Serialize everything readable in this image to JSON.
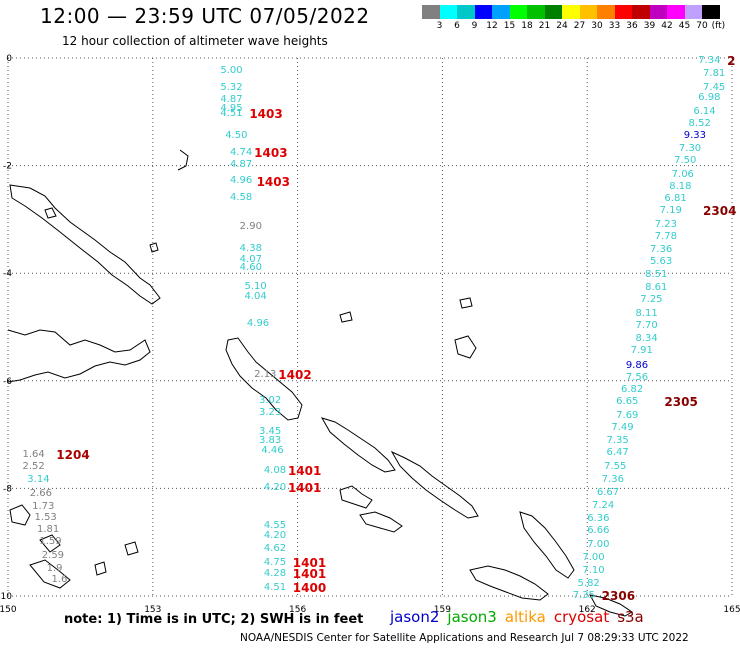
{
  "header": {
    "title": "12:00 — 23:59 UTC 07/05/2022",
    "subtitle": "12 hour collection of altimeter wave heights"
  },
  "legend": {
    "unit": "(ft)",
    "ticks": [
      "3",
      "6",
      "9",
      "12",
      "15",
      "18",
      "21",
      "24",
      "27",
      "30",
      "33",
      "36",
      "39",
      "42",
      "45",
      "70"
    ],
    "colors": [
      "#808080",
      "#00ffff",
      "#00c8c8",
      "#0000ff",
      "#00a0ff",
      "#00ff00",
      "#00c000",
      "#008000",
      "#ffff00",
      "#ffc000",
      "#ff8000",
      "#ff0000",
      "#c00000",
      "#c000c0",
      "#ff00ff",
      "#c0a0ff",
      "#000000"
    ]
  },
  "map": {
    "lon_ticks": [
      "150",
      "153",
      "156",
      "159",
      "162",
      "165"
    ],
    "lat_ticks": [
      "0",
      "-2",
      "-4",
      "-6",
      "-8",
      "-10"
    ],
    "lon_range": [
      150,
      165
    ],
    "lat_range": [
      -10,
      0
    ]
  },
  "observations": [
    {
      "value": "5.00",
      "color": "#33cccc",
      "lon": 154.4,
      "lat": -0.25
    },
    {
      "value": "5.32",
      "color": "#33cccc",
      "lon": 154.4,
      "lat": -0.55
    },
    {
      "value": "4.87",
      "color": "#33cccc",
      "lon": 154.4,
      "lat": -0.78
    },
    {
      "value": "4.95",
      "color": "#33cccc",
      "lon": 154.4,
      "lat": -0.95
    },
    {
      "value": "4.51",
      "color": "#33cccc",
      "lon": 154.4,
      "lat": -1.05
    },
    {
      "value": "4.50",
      "color": "#33cccc",
      "lon": 154.5,
      "lat": -1.45
    },
    {
      "value": "4.74",
      "color": "#33cccc",
      "lon": 154.6,
      "lat": -1.77
    },
    {
      "value": "4.87",
      "color": "#33cccc",
      "lon": 154.6,
      "lat": -1.98
    },
    {
      "value": "4.96",
      "color": "#33cccc",
      "lon": 154.6,
      "lat": -2.28
    },
    {
      "value": "4.58",
      "color": "#33cccc",
      "lon": 154.6,
      "lat": -2.6
    },
    {
      "value": "2.90",
      "color": "#808080",
      "lon": 154.8,
      "lat": -3.15
    },
    {
      "value": "4.38",
      "color": "#33cccc",
      "lon": 154.8,
      "lat": -3.55
    },
    {
      "value": "4.07",
      "color": "#33cccc",
      "lon": 154.8,
      "lat": -3.75
    },
    {
      "value": "4.60",
      "color": "#33cccc",
      "lon": 154.8,
      "lat": -3.9
    },
    {
      "value": "5.10",
      "color": "#33cccc",
      "lon": 154.9,
      "lat": -4.25
    },
    {
      "value": "4.04",
      "color": "#33cccc",
      "lon": 154.9,
      "lat": -4.45
    },
    {
      "value": "4.96",
      "color": "#33cccc",
      "lon": 154.95,
      "lat": -4.95
    },
    {
      "value": "2.13",
      "color": "#808080",
      "lon": 155.1,
      "lat": -5.9
    },
    {
      "value": "3.02",
      "color": "#33cccc",
      "lon": 155.2,
      "lat": -6.38
    },
    {
      "value": "3.23",
      "color": "#33cccc",
      "lon": 155.2,
      "lat": -6.6
    },
    {
      "value": "3.45",
      "color": "#33cccc",
      "lon": 155.2,
      "lat": -6.95
    },
    {
      "value": "3.83",
      "color": "#33cccc",
      "lon": 155.2,
      "lat": -7.12
    },
    {
      "value": "4.46",
      "color": "#33cccc",
      "lon": 155.25,
      "lat": -7.3
    },
    {
      "value": "4.08",
      "color": "#33cccc",
      "lon": 155.3,
      "lat": -7.68
    },
    {
      "value": "4.20",
      "color": "#33cccc",
      "lon": 155.3,
      "lat": -8.0
    },
    {
      "value": "4.55",
      "color": "#33cccc",
      "lon": 155.3,
      "lat": -8.7
    },
    {
      "value": "4.20",
      "color": "#33cccc",
      "lon": 155.3,
      "lat": -8.88
    },
    {
      "value": "4.62",
      "color": "#33cccc",
      "lon": 155.3,
      "lat": -9.12
    },
    {
      "value": "4.75",
      "color": "#33cccc",
      "lon": 155.3,
      "lat": -9.38
    },
    {
      "value": "4.28",
      "color": "#33cccc",
      "lon": 155.3,
      "lat": -9.6
    },
    {
      "value": "4.51",
      "color": "#33cccc",
      "lon": 155.3,
      "lat": -9.85
    },
    {
      "value": "1.64",
      "color": "#808080",
      "lon": 150.3,
      "lat": -7.38
    },
    {
      "value": "2.52",
      "color": "#808080",
      "lon": 150.3,
      "lat": -7.6
    },
    {
      "value": "3.14",
      "color": "#33cccc",
      "lon": 150.4,
      "lat": -7.85
    },
    {
      "value": "2.66",
      "color": "#808080",
      "lon": 150.45,
      "lat": -8.1
    },
    {
      "value": "1.73",
      "color": "#808080",
      "lon": 150.5,
      "lat": -8.35
    },
    {
      "value": "1.53",
      "color": "#808080",
      "lon": 150.55,
      "lat": -8.55
    },
    {
      "value": "1.81",
      "color": "#808080",
      "lon": 150.6,
      "lat": -8.78
    },
    {
      "value": "1.59",
      "color": "#808080",
      "lon": 150.65,
      "lat": -9.0
    },
    {
      "value": "2.59",
      "color": "#808080",
      "lon": 150.7,
      "lat": -9.25
    },
    {
      "value": "1.9",
      "color": "#808080",
      "lon": 150.8,
      "lat": -9.5
    },
    {
      "value": "1.6",
      "color": "#808080",
      "lon": 150.9,
      "lat": -9.7
    },
    {
      "value": "7.34",
      "color": "#33cccc",
      "lon": 164.3,
      "lat": -0.05
    },
    {
      "value": "7.81",
      "color": "#33cccc",
      "lon": 164.4,
      "lat": -0.3
    },
    {
      "value": "7.45",
      "color": "#33cccc",
      "lon": 164.4,
      "lat": -0.55
    },
    {
      "value": "6.98",
      "color": "#33cccc",
      "lon": 164.3,
      "lat": -0.75
    },
    {
      "value": "6.14",
      "color": "#33cccc",
      "lon": 164.2,
      "lat": -1.0
    },
    {
      "value": "8.52",
      "color": "#33cccc",
      "lon": 164.1,
      "lat": -1.22
    },
    {
      "value": "9.33",
      "color": "#0000cc",
      "lon": 164.0,
      "lat": -1.45
    },
    {
      "value": "7.30",
      "color": "#33cccc",
      "lon": 163.9,
      "lat": -1.7
    },
    {
      "value": "7.50",
      "color": "#33cccc",
      "lon": 163.8,
      "lat": -1.92
    },
    {
      "value": "7.06",
      "color": "#33cccc",
      "lon": 163.75,
      "lat": -2.17
    },
    {
      "value": "8.18",
      "color": "#33cccc",
      "lon": 163.7,
      "lat": -2.4
    },
    {
      "value": "6.81",
      "color": "#33cccc",
      "lon": 163.6,
      "lat": -2.62
    },
    {
      "value": "7.19",
      "color": "#33cccc",
      "lon": 163.5,
      "lat": -2.85
    },
    {
      "value": "7.23",
      "color": "#33cccc",
      "lon": 163.4,
      "lat": -3.1
    },
    {
      "value": "7.78",
      "color": "#33cccc",
      "lon": 163.4,
      "lat": -3.33
    },
    {
      "value": "7.36",
      "color": "#33cccc",
      "lon": 163.3,
      "lat": -3.57
    },
    {
      "value": "5.63",
      "color": "#33cccc",
      "lon": 163.3,
      "lat": -3.8
    },
    {
      "value": "8.51",
      "color": "#33cccc",
      "lon": 163.2,
      "lat": -4.03
    },
    {
      "value": "8.61",
      "color": "#33cccc",
      "lon": 163.2,
      "lat": -4.27
    },
    {
      "value": "7.25",
      "color": "#33cccc",
      "lon": 163.1,
      "lat": -4.5
    },
    {
      "value": "8.11",
      "color": "#33cccc",
      "lon": 163.0,
      "lat": -4.75
    },
    {
      "value": "7.70",
      "color": "#33cccc",
      "lon": 163.0,
      "lat": -4.98
    },
    {
      "value": "8.34",
      "color": "#33cccc",
      "lon": 163.0,
      "lat": -5.23
    },
    {
      "value": "7.91",
      "color": "#33cccc",
      "lon": 162.9,
      "lat": -5.45
    },
    {
      "value": "9.86",
      "color": "#0000cc",
      "lon": 162.8,
      "lat": -5.72
    },
    {
      "value": "7.56",
      "color": "#33cccc",
      "lon": 162.8,
      "lat": -5.95
    },
    {
      "value": "6.82",
      "color": "#33cccc",
      "lon": 162.7,
      "lat": -6.17
    },
    {
      "value": "6.65",
      "color": "#33cccc",
      "lon": 162.6,
      "lat": -6.4
    },
    {
      "value": "7.69",
      "color": "#33cccc",
      "lon": 162.6,
      "lat": -6.65
    },
    {
      "value": "7.49",
      "color": "#33cccc",
      "lon": 162.5,
      "lat": -6.88
    },
    {
      "value": "7.35",
      "color": "#33cccc",
      "lon": 162.4,
      "lat": -7.12
    },
    {
      "value": "6.47",
      "color": "#33cccc",
      "lon": 162.4,
      "lat": -7.35
    },
    {
      "value": "7.55",
      "color": "#33cccc",
      "lon": 162.35,
      "lat": -7.6
    },
    {
      "value": "7.36",
      "color": "#33cccc",
      "lon": 162.3,
      "lat": -7.85
    },
    {
      "value": "6.67",
      "color": "#33cccc",
      "lon": 162.2,
      "lat": -8.08
    },
    {
      "value": "7.24",
      "color": "#33cccc",
      "lon": 162.1,
      "lat": -8.33
    },
    {
      "value": "6.36",
      "color": "#33cccc",
      "lon": 162.0,
      "lat": -8.57
    },
    {
      "value": "6.66",
      "color": "#33cccc",
      "lon": 162.0,
      "lat": -8.8
    },
    {
      "value": "7.00",
      "color": "#33cccc",
      "lon": 162.0,
      "lat": -9.05
    },
    {
      "value": "7.00",
      "color": "#33cccc",
      "lon": 161.9,
      "lat": -9.3
    },
    {
      "value": "7.10",
      "color": "#33cccc",
      "lon": 161.9,
      "lat": -9.53
    },
    {
      "value": "5.82",
      "color": "#33cccc",
      "lon": 161.8,
      "lat": -9.77
    },
    {
      "value": "7.35",
      "color": "#33cccc",
      "lon": 161.7,
      "lat": -10.0
    }
  ],
  "pass_labels": [
    {
      "text": "1403",
      "color": "#dd0000",
      "lon": 155.0,
      "lat": -1.05
    },
    {
      "text": "1403",
      "color": "#dd0000",
      "lon": 155.1,
      "lat": -1.77
    },
    {
      "text": "1403",
      "color": "#dd0000",
      "lon": 155.15,
      "lat": -2.3
    },
    {
      "text": "1402",
      "color": "#dd0000",
      "lon": 155.6,
      "lat": -5.9
    },
    {
      "text": "1401",
      "color": "#dd0000",
      "lon": 155.8,
      "lat": -7.68
    },
    {
      "text": "1401",
      "color": "#dd0000",
      "lon": 155.8,
      "lat": -8.0
    },
    {
      "text": "1401",
      "color": "#dd0000",
      "lon": 155.9,
      "lat": -9.38
    },
    {
      "text": "1401",
      "color": "#dd0000",
      "lon": 155.9,
      "lat": -9.6
    },
    {
      "text": "1400",
      "color": "#dd0000",
      "lon": 155.9,
      "lat": -9.85
    },
    {
      "text": "1204",
      "color": "#aa0000",
      "lon": 151.0,
      "lat": -7.38
    },
    {
      "text": "2304",
      "color": "#880000",
      "lon": 164.4,
      "lat": -2.85
    },
    {
      "text": "2305",
      "color": "#880000",
      "lon": 163.6,
      "lat": -6.4
    },
    {
      "text": "2306",
      "color": "#880000",
      "lon": 162.3,
      "lat": -10.0
    },
    {
      "text": "2",
      "color": "#880000",
      "lon": 164.9,
      "lat": -0.05
    }
  ],
  "footer": {
    "note": "note: 1) Time is in UTC; 2) SWH is in feet",
    "missions": [
      {
        "name": "jason2",
        "color": "#0000cc"
      },
      {
        "name": "jason3",
        "color": "#00aa00"
      },
      {
        "name": "altika",
        "color": "#ff9900"
      },
      {
        "name": "cryosat",
        "color": "#dd0000"
      },
      {
        "name": "s3a",
        "color": "#880000"
      }
    ],
    "credit": "NOAA/NESDIS Center for Satellite Applications and Research   Jul  7 08:29:33 UTC 2022"
  }
}
